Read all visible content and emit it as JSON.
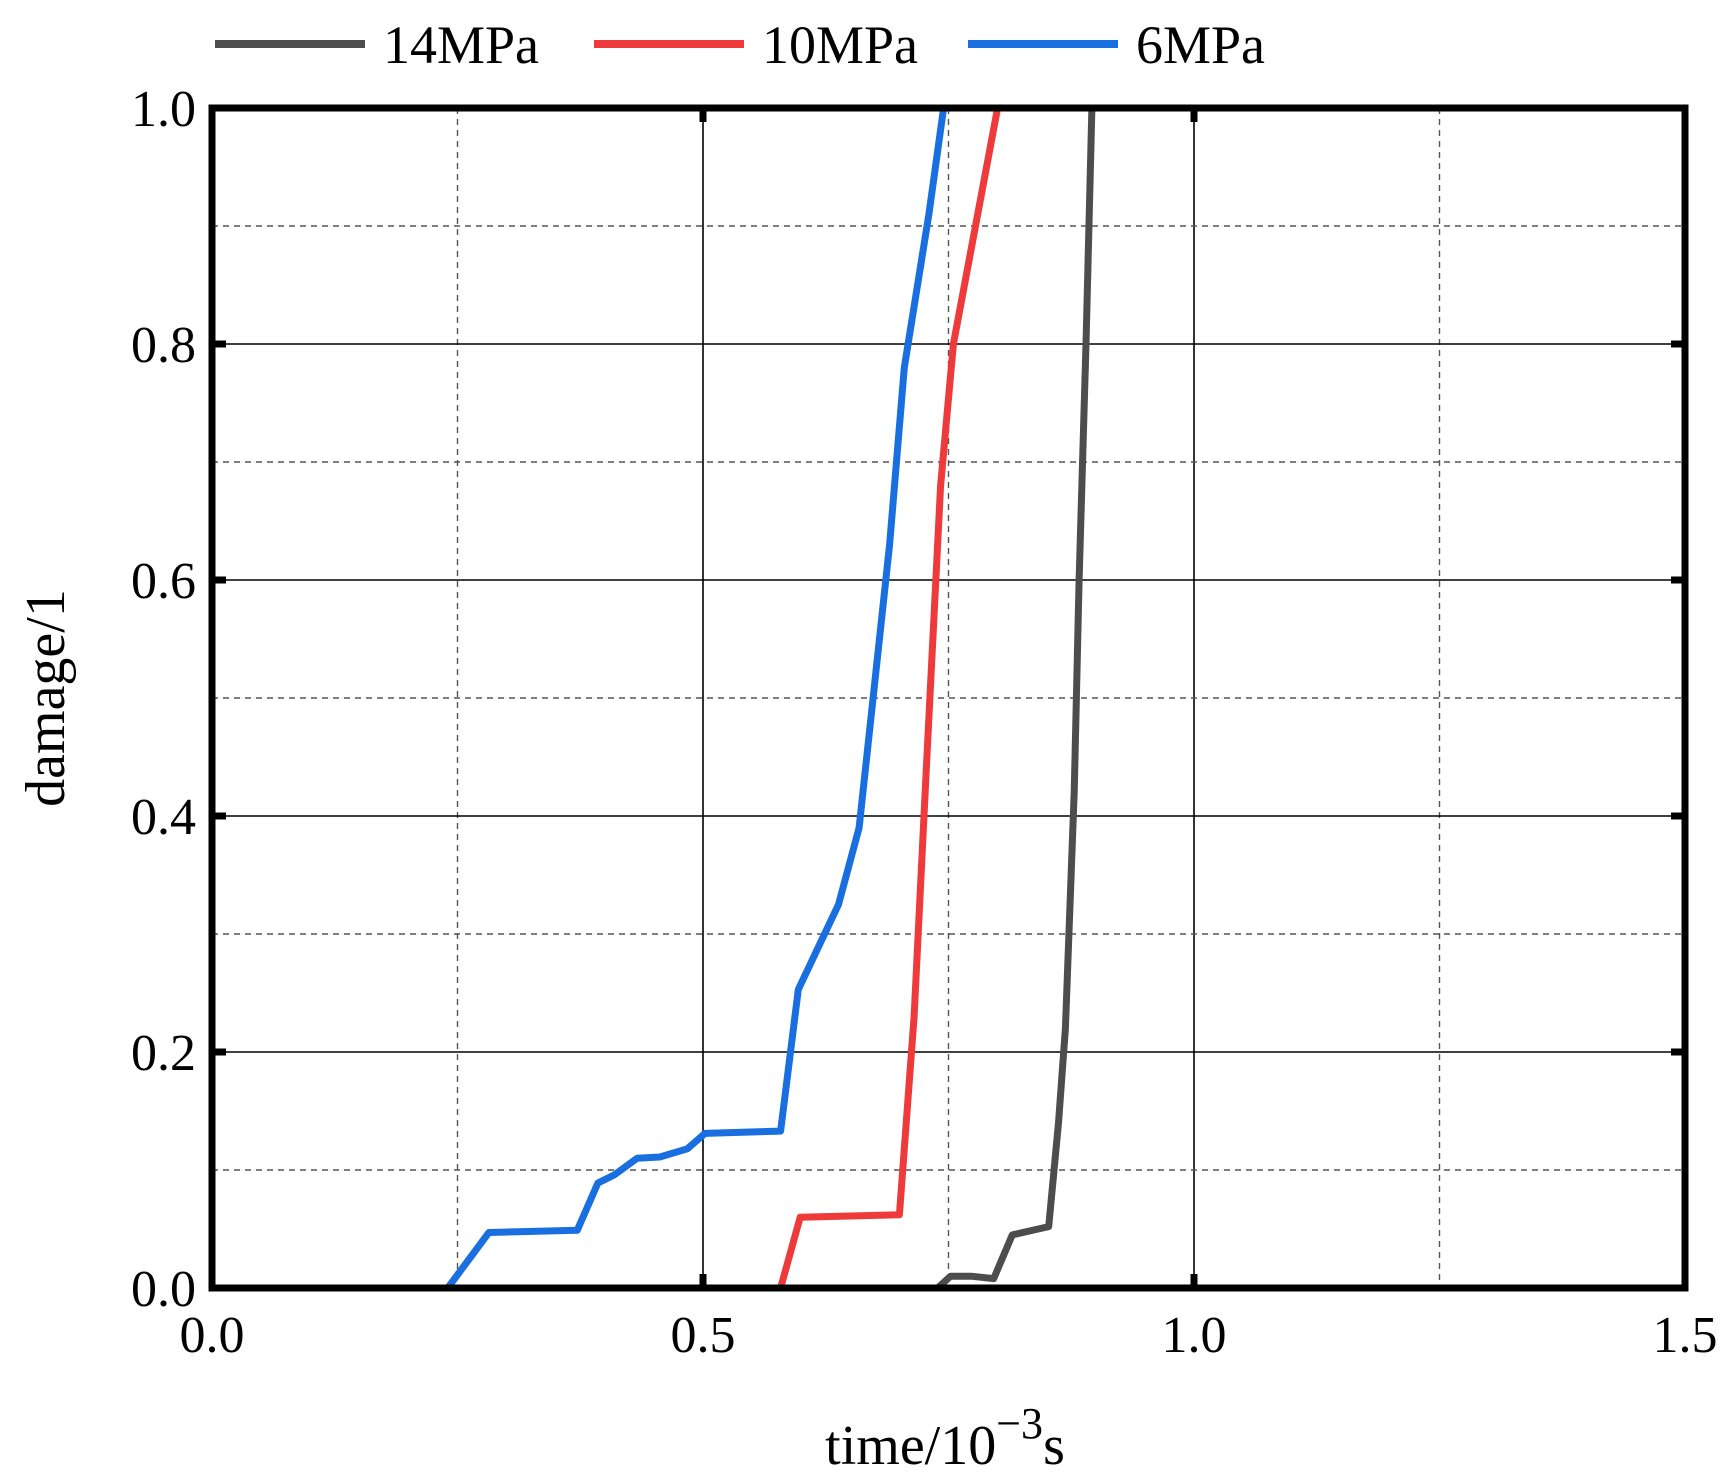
{
  "chart_data": {
    "type": "line",
    "xlabel_main": "time/10",
    "xlabel_sup": "−3",
    "xlabel_unit": "s",
    "ylabel": "damage/1",
    "xlim": [
      0.0,
      1.5
    ],
    "ylim": [
      0.0,
      1.0
    ],
    "x_ticks": [
      "0.0",
      "0.5",
      "1.0",
      "1.5"
    ],
    "y_ticks": [
      "0.0",
      "0.2",
      "0.4",
      "0.6",
      "0.8",
      "1.0"
    ],
    "grid": true,
    "legend_position": "top",
    "series": [
      {
        "name": "14MPa",
        "color": "#4d4d4d",
        "x": [
          0.739,
          0.752,
          0.773,
          0.796,
          0.815,
          0.852,
          0.862,
          0.869,
          0.878,
          0.883,
          0.89,
          0.896
        ],
        "y": [
          0.0,
          0.01,
          0.01,
          0.008,
          0.045,
          0.052,
          0.14,
          0.22,
          0.42,
          0.6,
          0.8,
          1.0
        ]
      },
      {
        "name": "10MPa",
        "color": "#ee3a3a",
        "x": [
          0.579,
          0.599,
          0.7,
          0.715,
          0.728,
          0.742,
          0.755,
          0.8
        ],
        "y": [
          0.0,
          0.06,
          0.062,
          0.23,
          0.45,
          0.68,
          0.8,
          1.0
        ]
      },
      {
        "name": "6MPa",
        "color": "#1a6fe0",
        "x": [
          0.24,
          0.282,
          0.372,
          0.393,
          0.41,
          0.433,
          0.456,
          0.484,
          0.502,
          0.579,
          0.597,
          0.638,
          0.659,
          0.668,
          0.69,
          0.705,
          0.73,
          0.745
        ],
        "y": [
          0.0,
          0.047,
          0.049,
          0.089,
          0.096,
          0.11,
          0.111,
          0.118,
          0.131,
          0.133,
          0.253,
          0.325,
          0.39,
          0.46,
          0.63,
          0.78,
          0.91,
          1.0
        ]
      }
    ]
  }
}
